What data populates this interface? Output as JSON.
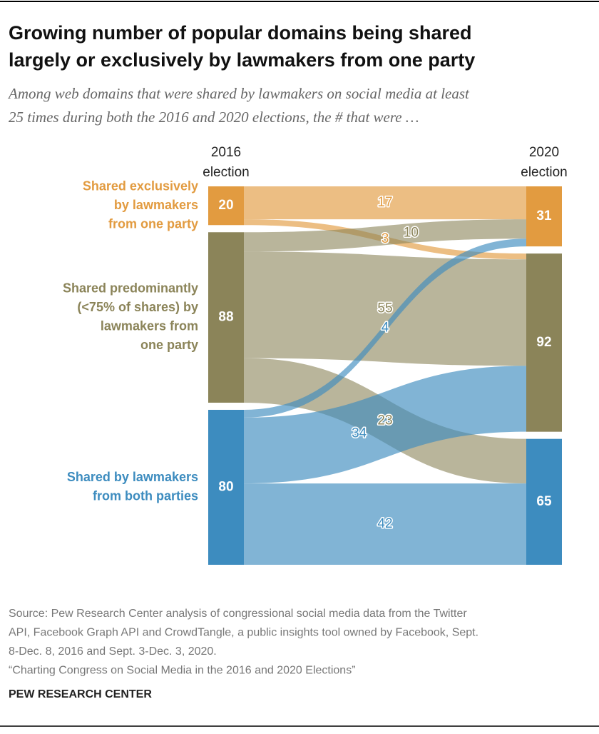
{
  "chart_data": {
    "type": "sankey",
    "title": [
      "Growing number of popular domains being shared",
      "largely or exclusively by lawmakers from one party"
    ],
    "subtitle": [
      "Among web domains that were shared by lawmakers on social media at least",
      "25 times during both the 2016 and 2020 elections, the # that were …"
    ],
    "columns": [
      [
        "2016",
        "election"
      ],
      [
        "2020",
        "election"
      ]
    ],
    "left_nodes": [
      {
        "label": [
          "Shared exclusively",
          "by lawmakers",
          "from one party"
        ],
        "value": 20,
        "color": "#e29b40"
      },
      {
        "label": [
          "Shared predominantly",
          "(<75% of shares) by",
          "lawmakers from",
          "one party"
        ],
        "value": 88,
        "color": "#8b8459"
      },
      {
        "label": [
          "Shared by lawmakers",
          "from both parties"
        ],
        "value": 80,
        "color": "#3d8cbf"
      }
    ],
    "right_nodes": [
      {
        "value": 31,
        "color": "#e29b40"
      },
      {
        "value": 92,
        "color": "#8b8459"
      },
      {
        "value": 65,
        "color": "#3d8cbf"
      }
    ],
    "flows": [
      {
        "source": 0,
        "target": 0,
        "value": 17
      },
      {
        "source": 0,
        "target": 1,
        "value": 3
      },
      {
        "source": 1,
        "target": 0,
        "value": 10
      },
      {
        "source": 1,
        "target": 1,
        "value": 55
      },
      {
        "source": 1,
        "target": 2,
        "value": 23
      },
      {
        "source": 2,
        "target": 0,
        "value": 4
      },
      {
        "source": 2,
        "target": 1,
        "value": 34
      },
      {
        "source": 2,
        "target": 2,
        "value": 42
      }
    ],
    "source": [
      "Source: Pew Research Center analysis of congressional social media data from the Twitter",
      "API, Facebook Graph API and CrowdTangle, a public insights tool owned by Facebook, Sept.",
      "8-Dec. 8, 2016 and Sept. 3-Dec. 3, 2020.",
      "“Charting Congress on Social Media in the 2016 and 2020 Elections”"
    ],
    "footer": "PEW RESEARCH CENTER"
  }
}
